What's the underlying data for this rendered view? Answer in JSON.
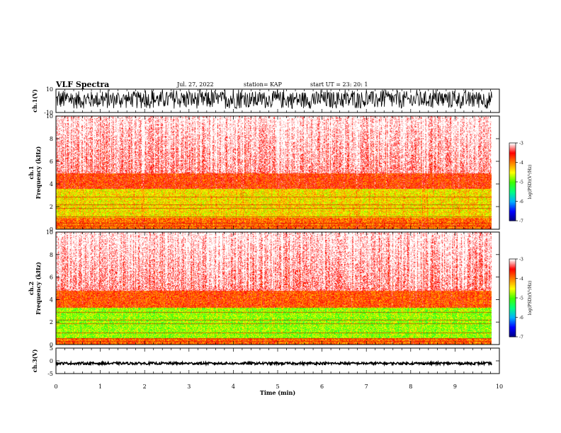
{
  "header": {
    "title": "VLF Spectra",
    "date": "Jul. 27, 2022",
    "station": "station= KAP",
    "start_ut": "start UT =  23: 20: 1"
  },
  "chart_data": [
    {
      "type": "line",
      "panel": "ch1-waveform",
      "ylabel": "ch.1(V)",
      "ylim": [
        -10,
        10
      ],
      "y_ticks": [
        "10",
        "-10"
      ],
      "xlim": [
        0,
        10
      ],
      "description_series": "dense oscillating voltage trace, roughly -7 to +9 V, from 0 to ~9.8 min",
      "line_color": "#000000"
    },
    {
      "type": "heatmap",
      "panel": "ch1-spectrogram",
      "ylabel": "ch.1\nFrequency (kHz)",
      "ylim": [
        0,
        10
      ],
      "y_ticks": [
        "0",
        "2",
        "4",
        "6",
        "8",
        "10"
      ],
      "xlim": [
        0,
        10
      ],
      "data_extent_x": [
        0,
        9.83
      ],
      "colorbar": {
        "label": "log(PSD)(V²/Hz)",
        "range": [
          -7,
          -3
        ],
        "ticks": [
          "-3",
          "-4",
          "-5",
          "-6",
          "-7"
        ]
      },
      "bands_kHz": [
        {
          "from": 0.0,
          "to": 1.0,
          "level": -3.9
        },
        {
          "from": 1.0,
          "to": 3.6,
          "level": -4.4
        },
        {
          "from": 3.6,
          "to": 5.0,
          "level": -3.7
        },
        {
          "from": 5.0,
          "to": 10.0,
          "level": -3.2
        }
      ]
    },
    {
      "type": "heatmap",
      "panel": "ch2-spectrogram",
      "ylabel": "ch.2\nFrequency (kHz)",
      "ylim": [
        0,
        10
      ],
      "y_ticks": [
        "0",
        "2",
        "4",
        "6",
        "8",
        "10"
      ],
      "xlim": [
        0,
        10
      ],
      "data_extent_x": [
        0,
        9.83
      ],
      "colorbar": {
        "label": "log(PSD)(V²/Hz)",
        "range": [
          -7,
          -3
        ],
        "ticks": [
          "-3",
          "-4",
          "-5",
          "-6",
          "-7"
        ]
      },
      "bands_kHz": [
        {
          "from": 0.0,
          "to": 0.6,
          "level": -3.9
        },
        {
          "from": 0.6,
          "to": 3.3,
          "level": -4.8
        },
        {
          "from": 3.3,
          "to": 4.8,
          "level": -3.8
        },
        {
          "from": 4.8,
          "to": 10.0,
          "level": -3.2
        }
      ]
    },
    {
      "type": "line",
      "panel": "ch3-waveform",
      "ylabel": "ch.3(V)",
      "ylim": [
        -5,
        5
      ],
      "y_ticks": [
        "5",
        "0",
        "-5"
      ],
      "xlim": [
        0,
        10
      ],
      "xlabel": "Time (min)",
      "x_ticks": [
        "0",
        "1",
        "2",
        "3",
        "4",
        "5",
        "6",
        "7",
        "8",
        "9",
        "10"
      ],
      "description_series": "narrow band trace around -1 V from 0 to ~9.8 min",
      "line_color": "#000000"
    }
  ],
  "colors": {
    "colormap": [
      "#000080",
      "#0000ff",
      "#00b0ff",
      "#00ff80",
      "#40ff00",
      "#ffff00",
      "#ff8000",
      "#ff0000",
      "#ffffff"
    ]
  }
}
